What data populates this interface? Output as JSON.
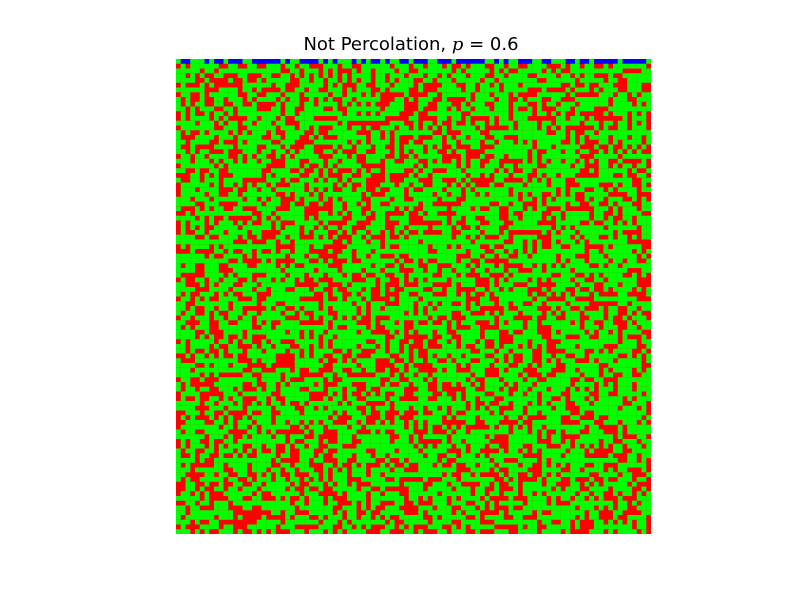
{
  "chart_data": {
    "type": "heatmap",
    "title_prefix": "Not Percolation, ",
    "title_variable": "p",
    "title_suffix": " = 0.6",
    "p": 0.6,
    "grid_size": [
      100,
      100
    ],
    "grid_on": false,
    "axes_visible": false,
    "legend": "none",
    "state_colors": {
      "open": "#00ff00",
      "blocked": "#ff0000",
      "filled": "#0000ff"
    },
    "filled_region": "top row only; flow does not reach the bottom"
  }
}
